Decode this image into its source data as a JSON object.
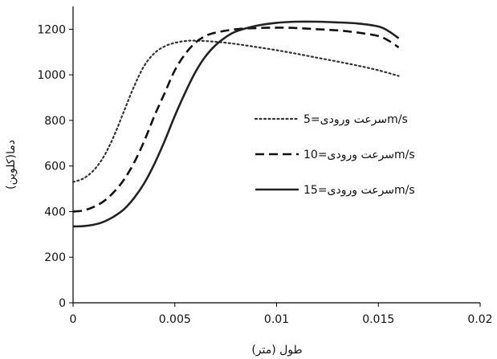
{
  "chart_data": {
    "type": "line",
    "xlabel": "طول (متر)",
    "ylabel": "دما(کلوین)",
    "xlim": [
      0,
      0.02
    ],
    "ylim": [
      0,
      1300
    ],
    "x_ticks": [
      0,
      0.005,
      0.01,
      0.015,
      0.02
    ],
    "x_tick_labels": [
      "0",
      "0.005",
      "0.01",
      "0.015",
      "0.02"
    ],
    "y_ticks": [
      0,
      200,
      400,
      600,
      800,
      1000,
      1200
    ],
    "y_tick_labels": [
      "0",
      "200",
      "400",
      "600",
      "800",
      "1000",
      "1200"
    ],
    "grid": false,
    "legend_position": "right-middle",
    "series": [
      {
        "name": "سرعت ورودی=5m/s",
        "style": "dotted",
        "color": "#333333",
        "x": [
          0,
          0.0005,
          0.001,
          0.0015,
          0.002,
          0.0025,
          0.003,
          0.0035,
          0.004,
          0.0045,
          0.005,
          0.0055,
          0.006,
          0.007,
          0.008,
          0.009,
          0.01,
          0.011,
          0.012,
          0.013,
          0.014,
          0.015,
          0.016
        ],
        "y": [
          530,
          545,
          580,
          640,
          730,
          840,
          950,
          1040,
          1095,
          1125,
          1140,
          1148,
          1150,
          1145,
          1135,
          1122,
          1108,
          1092,
          1075,
          1058,
          1040,
          1020,
          995
        ]
      },
      {
        "name": "سرعت ورودی=10m/s",
        "style": "dashed",
        "color": "#111111",
        "x": [
          0,
          0.0005,
          0.001,
          0.0015,
          0.002,
          0.0025,
          0.003,
          0.0035,
          0.004,
          0.0045,
          0.005,
          0.0055,
          0.006,
          0.0065,
          0.007,
          0.008,
          0.009,
          0.01,
          0.011,
          0.012,
          0.013,
          0.014,
          0.015,
          0.0155,
          0.016
        ],
        "y": [
          400,
          405,
          420,
          445,
          485,
          540,
          615,
          710,
          820,
          920,
          1020,
          1090,
          1140,
          1170,
          1185,
          1200,
          1205,
          1207,
          1205,
          1200,
          1195,
          1185,
          1170,
          1150,
          1120
        ]
      },
      {
        "name": "سرعت ورودی=15m/s",
        "style": "solid",
        "color": "#222222",
        "x": [
          0,
          0.0005,
          0.001,
          0.0015,
          0.002,
          0.0025,
          0.003,
          0.0035,
          0.004,
          0.0045,
          0.005,
          0.0055,
          0.006,
          0.0065,
          0.007,
          0.0075,
          0.008,
          0.009,
          0.01,
          0.011,
          0.012,
          0.013,
          0.014,
          0.015,
          0.0155,
          0.016
        ],
        "y": [
          335,
          336,
          342,
          355,
          378,
          410,
          460,
          525,
          610,
          710,
          820,
          920,
          1010,
          1080,
          1130,
          1165,
          1190,
          1215,
          1228,
          1233,
          1233,
          1230,
          1225,
          1212,
          1192,
          1160
        ]
      }
    ]
  }
}
